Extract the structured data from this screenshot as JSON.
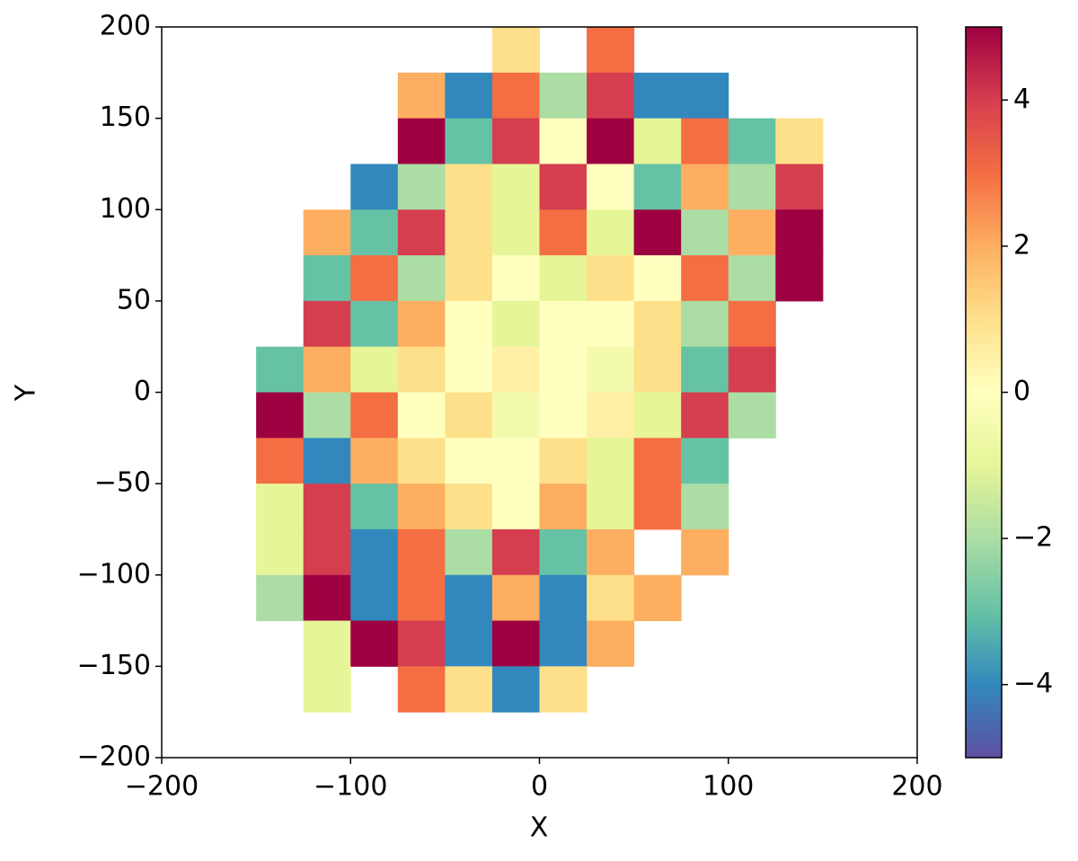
{
  "chart_data": {
    "type": "heatmap",
    "xlabel": "X",
    "ylabel": "Y",
    "xlim": [
      -200,
      200
    ],
    "ylim": [
      -200,
      200
    ],
    "xticks": [
      {
        "value": -200,
        "label": "−200"
      },
      {
        "value": -100,
        "label": "−100"
      },
      0,
      100,
      200
    ],
    "yticks": [
      {
        "value": -200,
        "label": "−200"
      },
      {
        "value": -150,
        "label": "−150"
      },
      {
        "value": -100,
        "label": "−100"
      },
      {
        "value": -50,
        "label": "−50"
      },
      0,
      50,
      100,
      150,
      200
    ],
    "x": [
      -187.5,
      -162.5,
      -137.5,
      -112.5,
      -87.5,
      -62.5,
      -37.5,
      -12.5,
      12.5,
      37.5,
      62.5,
      87.5,
      112.5,
      137.5,
      162.5,
      187.5
    ],
    "y": [
      187.5,
      162.5,
      137.5,
      112.5,
      87.5,
      62.5,
      37.5,
      12.5,
      -12.5,
      -37.5,
      -62.5,
      -87.5,
      -112.5,
      -137.5,
      -162.5,
      -187.5
    ],
    "values": [
      [
        null,
        null,
        null,
        null,
        null,
        null,
        null,
        1,
        null,
        3,
        null,
        null,
        null,
        null,
        null,
        null
      ],
      [
        null,
        null,
        null,
        null,
        null,
        2,
        -4,
        3,
        -2,
        4,
        -4,
        -4,
        null,
        null,
        null,
        null
      ],
      [
        null,
        null,
        null,
        null,
        null,
        5,
        -3,
        4,
        0,
        5,
        -1,
        3,
        -3,
        1,
        null,
        null
      ],
      [
        null,
        null,
        null,
        null,
        -4,
        -2,
        1,
        -1,
        4,
        0,
        -3,
        2,
        -2,
        4,
        null,
        null
      ],
      [
        null,
        null,
        null,
        2,
        -3,
        4,
        1,
        -1,
        3,
        -1,
        5,
        -2,
        2,
        5,
        null,
        null
      ],
      [
        null,
        null,
        null,
        -3,
        3,
        -2,
        1,
        0,
        -1,
        1,
        0,
        3,
        -2,
        5,
        null,
        null
      ],
      [
        null,
        null,
        null,
        4,
        -3,
        2,
        0,
        -1,
        0,
        0,
        1,
        -2,
        3,
        null,
        null,
        null
      ],
      [
        null,
        null,
        -3,
        2,
        -1,
        1,
        0,
        0.5,
        0,
        -0.5,
        1,
        -3,
        4,
        null,
        null,
        null
      ],
      [
        null,
        null,
        5,
        -2,
        3,
        0,
        1,
        -0.5,
        0,
        0.5,
        -1,
        4,
        -2,
        null,
        null,
        null
      ],
      [
        null,
        null,
        3,
        -4,
        2,
        1,
        0,
        0,
        1,
        -1,
        3,
        -3,
        null,
        null,
        null,
        null
      ],
      [
        null,
        null,
        -1,
        4,
        -3,
        2,
        1,
        0,
        2,
        -1,
        3,
        -2,
        null,
        null,
        null,
        null
      ],
      [
        null,
        null,
        -1,
        4,
        -4,
        3,
        -2,
        4,
        -3,
        2,
        null,
        2,
        null,
        null,
        null,
        null
      ],
      [
        null,
        null,
        -2,
        5,
        -4,
        3,
        -4,
        2,
        -4,
        1,
        2,
        null,
        null,
        null,
        null,
        null
      ],
      [
        null,
        null,
        null,
        -1,
        5,
        4,
        -4,
        5,
        -4,
        2,
        null,
        null,
        null,
        null,
        null,
        null
      ],
      [
        null,
        null,
        null,
        -1,
        null,
        3,
        1,
        -4,
        1,
        null,
        null,
        null,
        null,
        null,
        null,
        null
      ],
      [
        null,
        null,
        null,
        null,
        null,
        null,
        null,
        null,
        null,
        null,
        null,
        null,
        null,
        null,
        null,
        null
      ]
    ],
    "colorbar": {
      "lim": [
        -5,
        5
      ],
      "ticks": [
        {
          "value": -4,
          "label": "−4"
        },
        {
          "value": -2,
          "label": "−2"
        },
        0,
        2,
        4
      ],
      "colors": [
        "#5e4fa2",
        "#3288bd",
        "#66c2a5",
        "#abdda4",
        "#e6f598",
        "#ffffbf",
        "#fee08b",
        "#fdae61",
        "#f46d43",
        "#d53e4f",
        "#9e0142"
      ]
    }
  }
}
